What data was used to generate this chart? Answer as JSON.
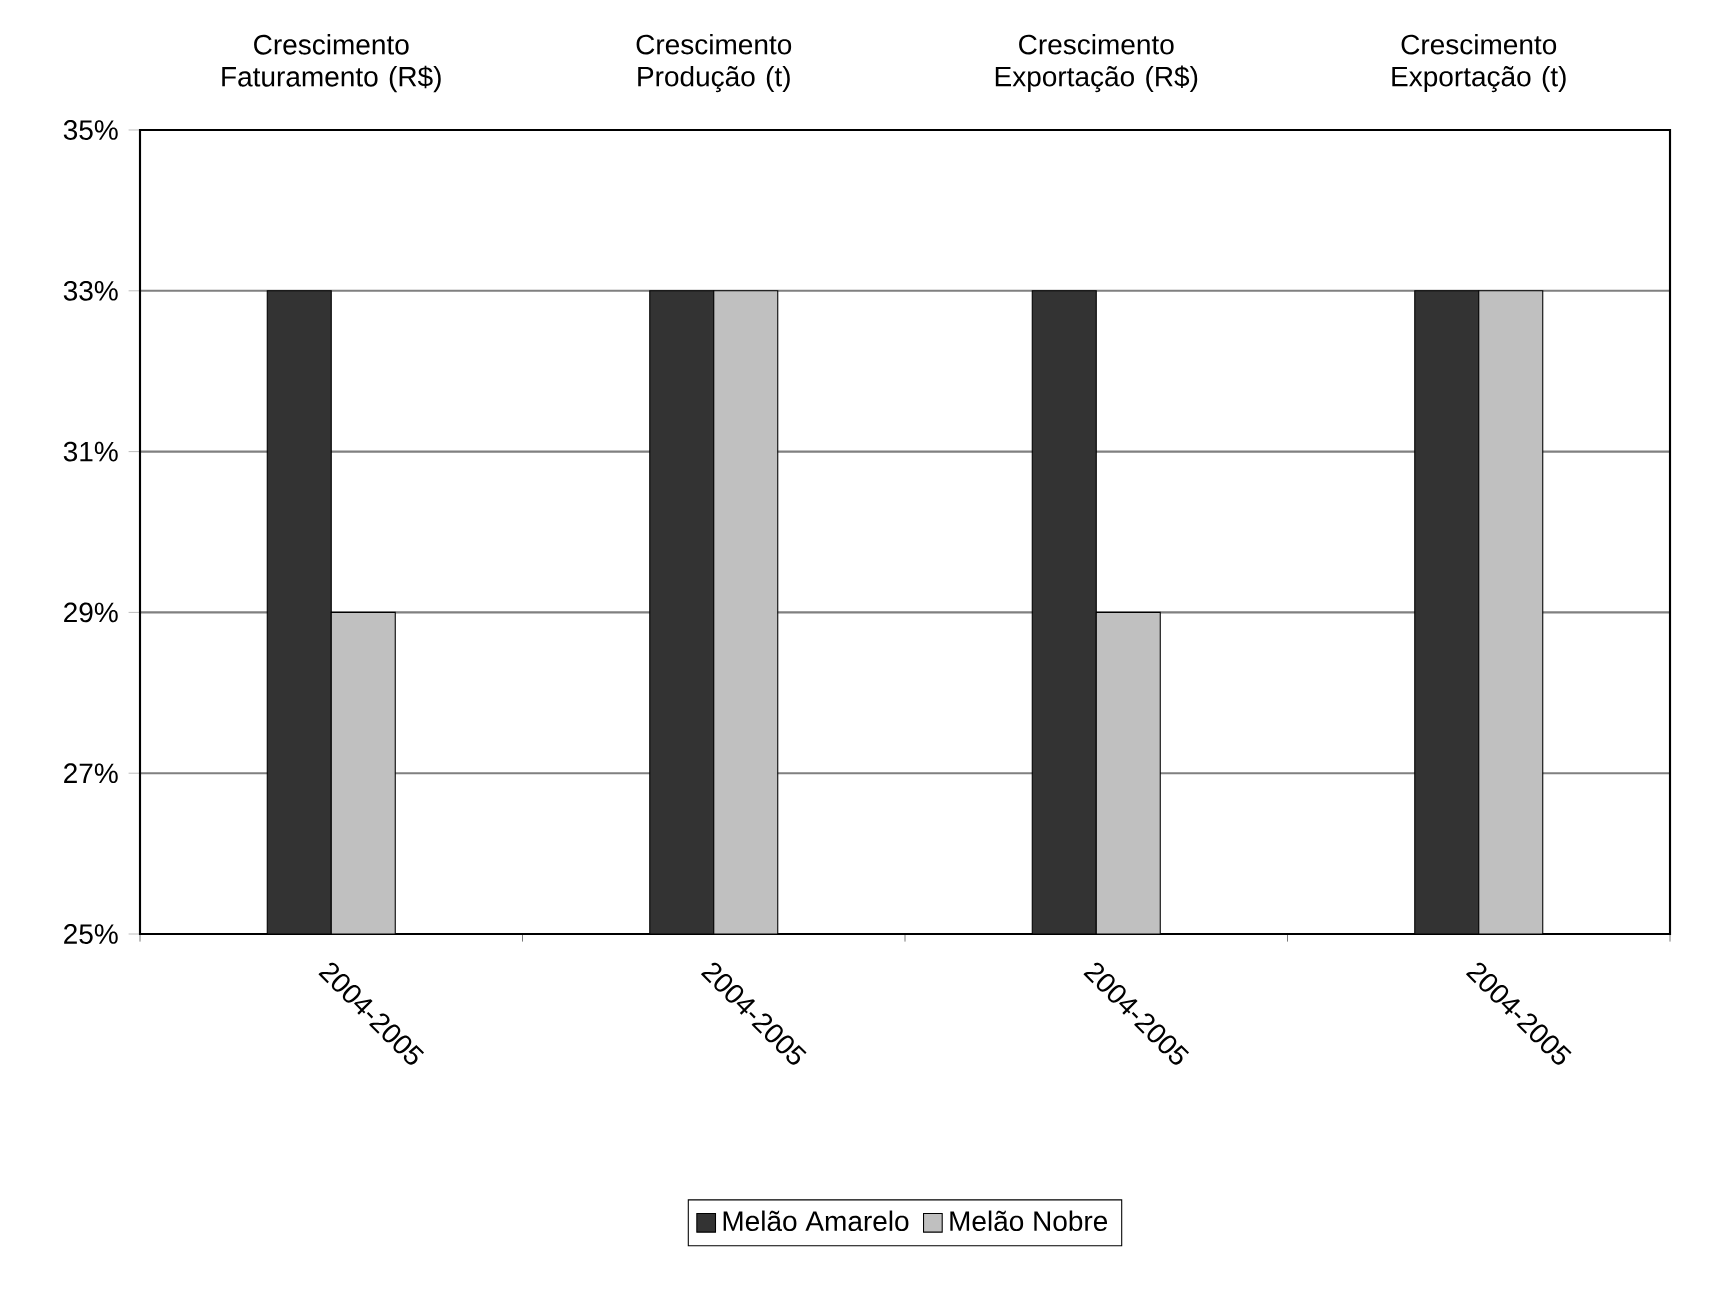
{
  "chart_data": {
    "type": "bar",
    "categories": [
      "2004-2005",
      "2004-2005",
      "2004-2005",
      "2004-2005"
    ],
    "series": [
      {
        "name": "Melão Amarelo",
        "color": "#333333",
        "values": [
          33,
          33,
          33,
          33
        ]
      },
      {
        "name": "Melão Nobre",
        "color": "#c0c0c0",
        "values": [
          29,
          33,
          29,
          33
        ]
      }
    ],
    "annotations": [
      "Crescimento Faturamento (R$)",
      "Crescimento Produção (t)",
      "Crescimento Exportação (R$)",
      "Crescimento Exportação (t)"
    ],
    "ylim": [
      25,
      35
    ],
    "yticks": [
      {
        "value": 25,
        "label": "25%"
      },
      {
        "value": 27,
        "label": "27%"
      },
      {
        "value": 29,
        "label": "29%"
      },
      {
        "value": 31,
        "label": "31%"
      },
      {
        "value": 33,
        "label": "33%"
      },
      {
        "value": 35,
        "label": "35%"
      }
    ],
    "grid": "y",
    "legend": "bottom"
  }
}
